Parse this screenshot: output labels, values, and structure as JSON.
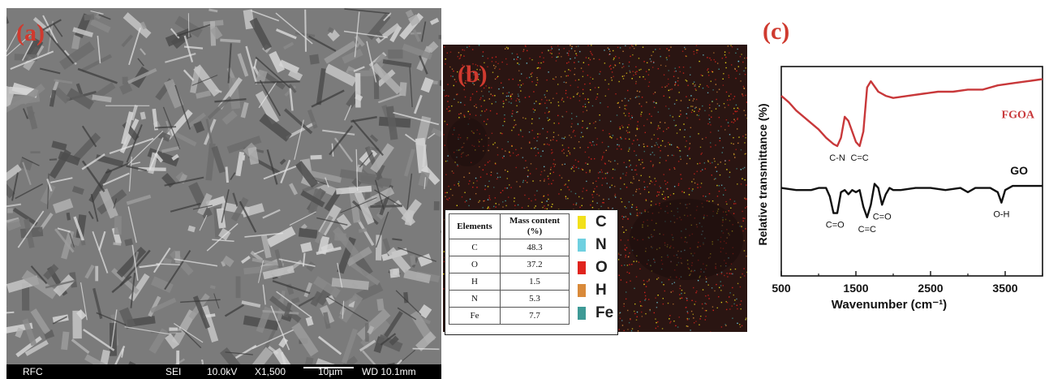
{
  "panels": {
    "a": {
      "label": "(a)"
    },
    "b": {
      "label": "(b)"
    },
    "c": {
      "label": "(c)"
    }
  },
  "sem": {
    "info": {
      "mode": "RFC",
      "detector": "SEI",
      "voltage": "10.0kV",
      "magnification": "X1,500",
      "scale": "10µm",
      "wd": "WD 10.1mm"
    }
  },
  "eds": {
    "table": {
      "headers": [
        "Elements",
        "Mass content (%)"
      ],
      "rows": [
        {
          "element": "C",
          "mass": "48.3"
        },
        {
          "element": "O",
          "mass": "37.2"
        },
        {
          "element": "H",
          "mass": "1.5"
        },
        {
          "element": "N",
          "mass": "5.3"
        },
        {
          "element": "Fe",
          "mass": "7.7"
        }
      ]
    },
    "legend": [
      {
        "label": "C",
        "color": "#f2e01a"
      },
      {
        "label": "N",
        "color": "#6fd0e0"
      },
      {
        "label": "O",
        "color": "#e0241d"
      },
      {
        "label": "H",
        "color": "#d98a3a"
      },
      {
        "label": "Fe",
        "color": "#3e9a96"
      }
    ]
  },
  "chart_data": {
    "type": "line",
    "xlabel": "Wavenumber (cm⁻¹)",
    "ylabel": "Relative transmittance (%)",
    "xlim": [
      500,
      4000
    ],
    "x_ticks": [
      500,
      1500,
      2500,
      3500
    ],
    "y_ticks_shown": false,
    "series": [
      {
        "name": "FGOA",
        "color": "#c8383a",
        "points": [
          [
            500,
            0.86
          ],
          [
            600,
            0.83
          ],
          [
            700,
            0.79
          ],
          [
            800,
            0.76
          ],
          [
            900,
            0.73
          ],
          [
            1000,
            0.7
          ],
          [
            1100,
            0.66
          ],
          [
            1200,
            0.63
          ],
          [
            1250,
            0.62
          ],
          [
            1300,
            0.66
          ],
          [
            1350,
            0.76
          ],
          [
            1400,
            0.74
          ],
          [
            1450,
            0.69
          ],
          [
            1500,
            0.64
          ],
          [
            1550,
            0.62
          ],
          [
            1600,
            0.69
          ],
          [
            1650,
            0.9
          ],
          [
            1700,
            0.93
          ],
          [
            1800,
            0.88
          ],
          [
            1900,
            0.86
          ],
          [
            2000,
            0.85
          ],
          [
            2200,
            0.86
          ],
          [
            2400,
            0.87
          ],
          [
            2600,
            0.88
          ],
          [
            2800,
            0.88
          ],
          [
            3000,
            0.89
          ],
          [
            3200,
            0.89
          ],
          [
            3400,
            0.91
          ],
          [
            3600,
            0.92
          ],
          [
            3800,
            0.93
          ],
          [
            4000,
            0.94
          ]
        ],
        "annotations": [
          {
            "label": "C-N",
            "x": 1250
          },
          {
            "label": "C=C",
            "x": 1550
          }
        ]
      },
      {
        "name": "GO",
        "color": "#111111",
        "points": [
          [
            500,
            0.42
          ],
          [
            700,
            0.41
          ],
          [
            900,
            0.41
          ],
          [
            1000,
            0.42
          ],
          [
            1100,
            0.42
          ],
          [
            1150,
            0.38
          ],
          [
            1200,
            0.3
          ],
          [
            1250,
            0.3
          ],
          [
            1300,
            0.4
          ],
          [
            1350,
            0.41
          ],
          [
            1400,
            0.39
          ],
          [
            1450,
            0.41
          ],
          [
            1500,
            0.4
          ],
          [
            1550,
            0.41
          ],
          [
            1600,
            0.33
          ],
          [
            1650,
            0.28
          ],
          [
            1700,
            0.34
          ],
          [
            1750,
            0.44
          ],
          [
            1800,
            0.42
          ],
          [
            1850,
            0.34
          ],
          [
            1900,
            0.39
          ],
          [
            1950,
            0.42
          ],
          [
            2000,
            0.41
          ],
          [
            2100,
            0.41
          ],
          [
            2300,
            0.42
          ],
          [
            2500,
            0.42
          ],
          [
            2700,
            0.41
          ],
          [
            2900,
            0.42
          ],
          [
            3000,
            0.4
          ],
          [
            3100,
            0.42
          ],
          [
            3300,
            0.42
          ],
          [
            3400,
            0.4
          ],
          [
            3450,
            0.35
          ],
          [
            3500,
            0.41
          ],
          [
            3600,
            0.43
          ],
          [
            3800,
            0.43
          ],
          [
            4000,
            0.43
          ]
        ],
        "annotations": [
          {
            "label": "C=O",
            "x": 1220
          },
          {
            "label": "C=C",
            "x": 1650
          },
          {
            "label": "C=O",
            "x": 1850
          },
          {
            "label": "O-H",
            "x": 3450
          }
        ]
      }
    ]
  }
}
